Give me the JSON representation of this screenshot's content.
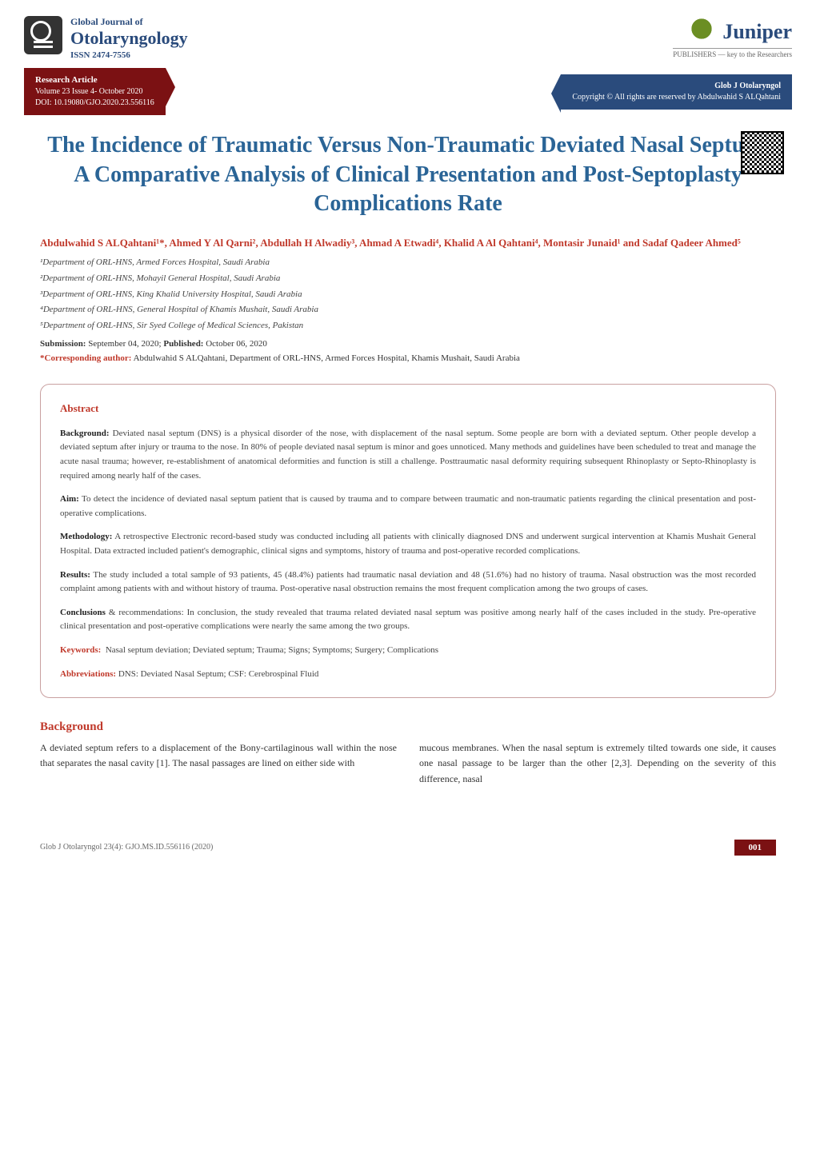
{
  "journal": {
    "label": "Global Journal of",
    "name": "Otolaryngology",
    "issn": "ISSN 2474-7556"
  },
  "publisher": {
    "name": "Juniper",
    "sublabel": "PUBLISHERS",
    "tagline": "key to the Researchers"
  },
  "ribbon": {
    "article_type": "Research Article",
    "volume": "Volume 23 Issue 4- October 2020",
    "doi": "DOI: 10.19080/GJO.2020.23.556116",
    "journal_short": "Glob J Otolaryngol",
    "copyright": "Copyright © All rights are reserved by  Abdulwahid S ALQahtani"
  },
  "title": "The Incidence of Traumatic Versus Non-Traumatic Deviated Nasal Septum, A Comparative Analysis of Clinical Presentation and Post-Septoplasty Complications Rate",
  "authors": "Abdulwahid S ALQahtani¹*, Ahmed Y Al Qarni², Abdullah H Alwadiy³, Ahmad A Etwadi⁴, Khalid A Al Qahtani⁴, Montasir Junaid¹ and Sadaf Qadeer Ahmed⁵",
  "affiliations": [
    "¹Department of ORL-HNS, Armed Forces Hospital, Saudi Arabia",
    "²Department of ORL-HNS, Mohayil General Hospital, Saudi Arabia",
    "³Department of ORL-HNS, King Khalid University Hospital, Saudi Arabia",
    "⁴Department of ORL-HNS, General Hospital of Khamis Mushait, Saudi Arabia",
    "⁵Department of ORL-HNS, Sir Syed College of Medical Sciences, Pakistan"
  ],
  "dates": {
    "submission_label": "Submission:",
    "submission": "September 04, 2020;",
    "published_label": "Published:",
    "published": "October 06, 2020"
  },
  "corresponding": {
    "label": "*Corresponding author:",
    "text": "Abdulwahid S ALQahtani, Department of ORL-HNS, Armed Forces Hospital, Khamis Mushait, Saudi Arabia"
  },
  "abstract": {
    "heading": "Abstract",
    "background_label": "Background:",
    "background": "Deviated nasal septum (DNS) is a physical disorder of the nose, with displacement of the nasal septum. Some people are born with a deviated septum. Other people develop a deviated septum after injury or trauma to the nose. In 80% of people deviated nasal septum is minor and goes unnoticed. Many methods and guidelines have been scheduled to treat and manage the acute nasal trauma; however, re-establishment of anatomical deformities and function is still a challenge. Posttraumatic nasal deformity requiring subsequent Rhinoplasty or Septo-Rhinoplasty is required among nearly half of the cases.",
    "aim_label": "Aim:",
    "aim": "To detect the incidence of deviated nasal septum patient that is caused by trauma and to compare between traumatic and non-traumatic patients regarding the clinical presentation and post-operative complications.",
    "methodology_label": "Methodology:",
    "methodology": "A retrospective Electronic record-based study was conducted including all patients with clinically diagnosed DNS and underwent surgical intervention at Khamis Mushait General Hospital. Data extracted included patient's demographic, clinical signs and symptoms, history of trauma and post-operative recorded complications.",
    "results_label": "Results:",
    "results": "The study included a total sample of 93 patients, 45 (48.4%) patients had traumatic nasal deviation and 48 (51.6%) had no history of trauma. Nasal obstruction was the most recorded complaint among patients with and without history of trauma. Post-operative nasal obstruction remains the most frequent complication among the two groups of cases.",
    "conclusions_label": "Conclusions",
    "conclusions": "& recommendations: In conclusion, the study revealed that trauma related deviated nasal septum was positive among nearly half of the cases included in the study. Pre-operative clinical presentation and post-operative complications were nearly the same among the two groups.",
    "keywords_label": "Keywords:",
    "keywords": "Nasal septum deviation; Deviated septum; Trauma; Signs; Symptoms; Surgery; Complications",
    "abbrev_label": "Abbreviations:",
    "abbrev": "DNS: Deviated Nasal Septum; CSF: Cerebrospinal Fluid"
  },
  "body": {
    "heading": "Background",
    "col1": "A deviated septum refers to a displacement of the Bony-cartilaginous wall within the nose that separates the nasal cavity [1]. The nasal passages are lined on either side with",
    "col2": "mucous membranes. When the nasal septum is extremely tilted towards one side, it causes one nasal passage to be larger than the other [2,3]. Depending on the severity of this difference, nasal"
  },
  "footer": {
    "left": "Glob J Otolaryngol 23(4): GJO.MS.ID.556116 (2020)",
    "page": "001"
  },
  "colors": {
    "maroon": "#7b1113",
    "navy": "#2a4b7c",
    "link_blue": "#2a6496",
    "red": "#c0392b",
    "box_border": "#c9a0a0"
  }
}
